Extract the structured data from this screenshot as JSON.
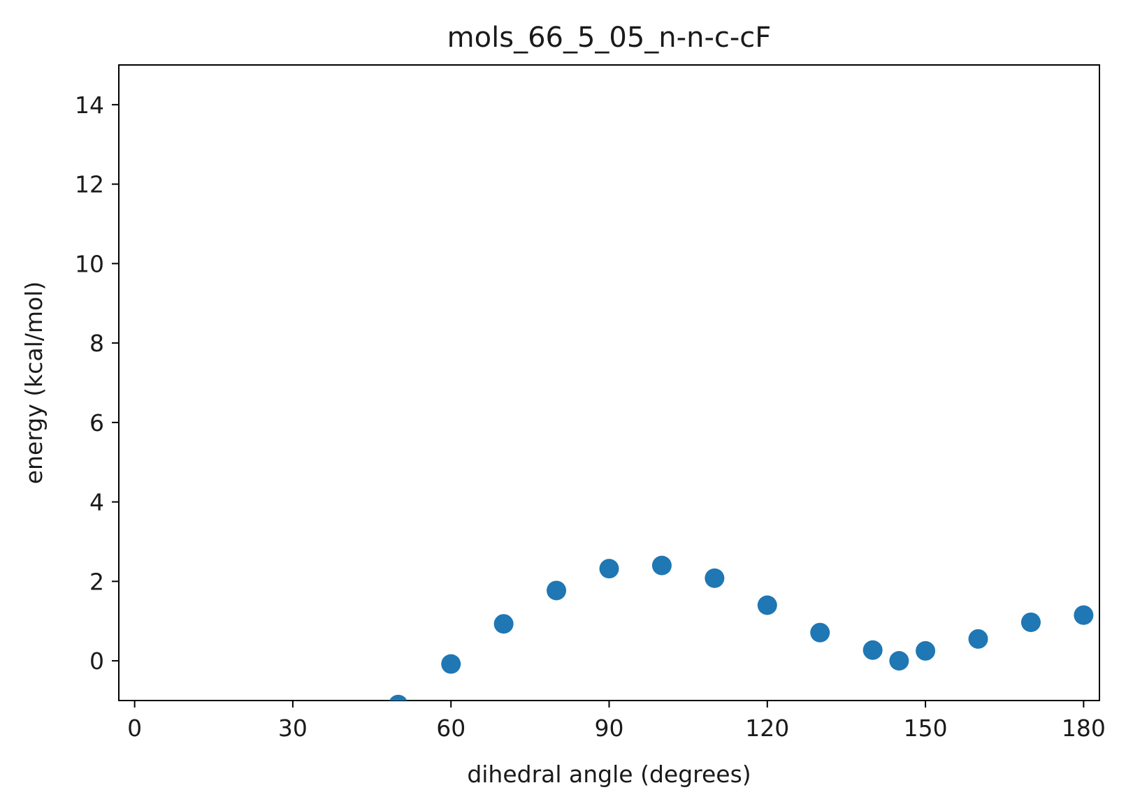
{
  "chart_data": {
    "type": "scatter",
    "title": "mols_66_5_05_n-n-c-cF",
    "xlabel": "dihedral angle (degrees)",
    "ylabel": "energy (kcal/mol)",
    "xlim": [
      -3,
      183
    ],
    "ylim": [
      -1,
      15
    ],
    "xticks": [
      0,
      30,
      60,
      90,
      120,
      150,
      180
    ],
    "yticks": [
      0,
      2,
      4,
      6,
      8,
      10,
      12,
      14
    ],
    "grid": false,
    "legend": "none",
    "series": [
      {
        "color": "#1f77b4",
        "x": [
          50,
          60,
          70,
          80,
          90,
          100,
          110,
          120,
          130,
          140,
          145,
          150,
          160,
          170,
          180
        ],
        "y": [
          -1.1,
          -0.08,
          0.93,
          1.77,
          2.32,
          2.4,
          2.08,
          1.4,
          0.71,
          0.27,
          0.0,
          0.25,
          0.55,
          0.97,
          1.15
        ]
      }
    ]
  }
}
